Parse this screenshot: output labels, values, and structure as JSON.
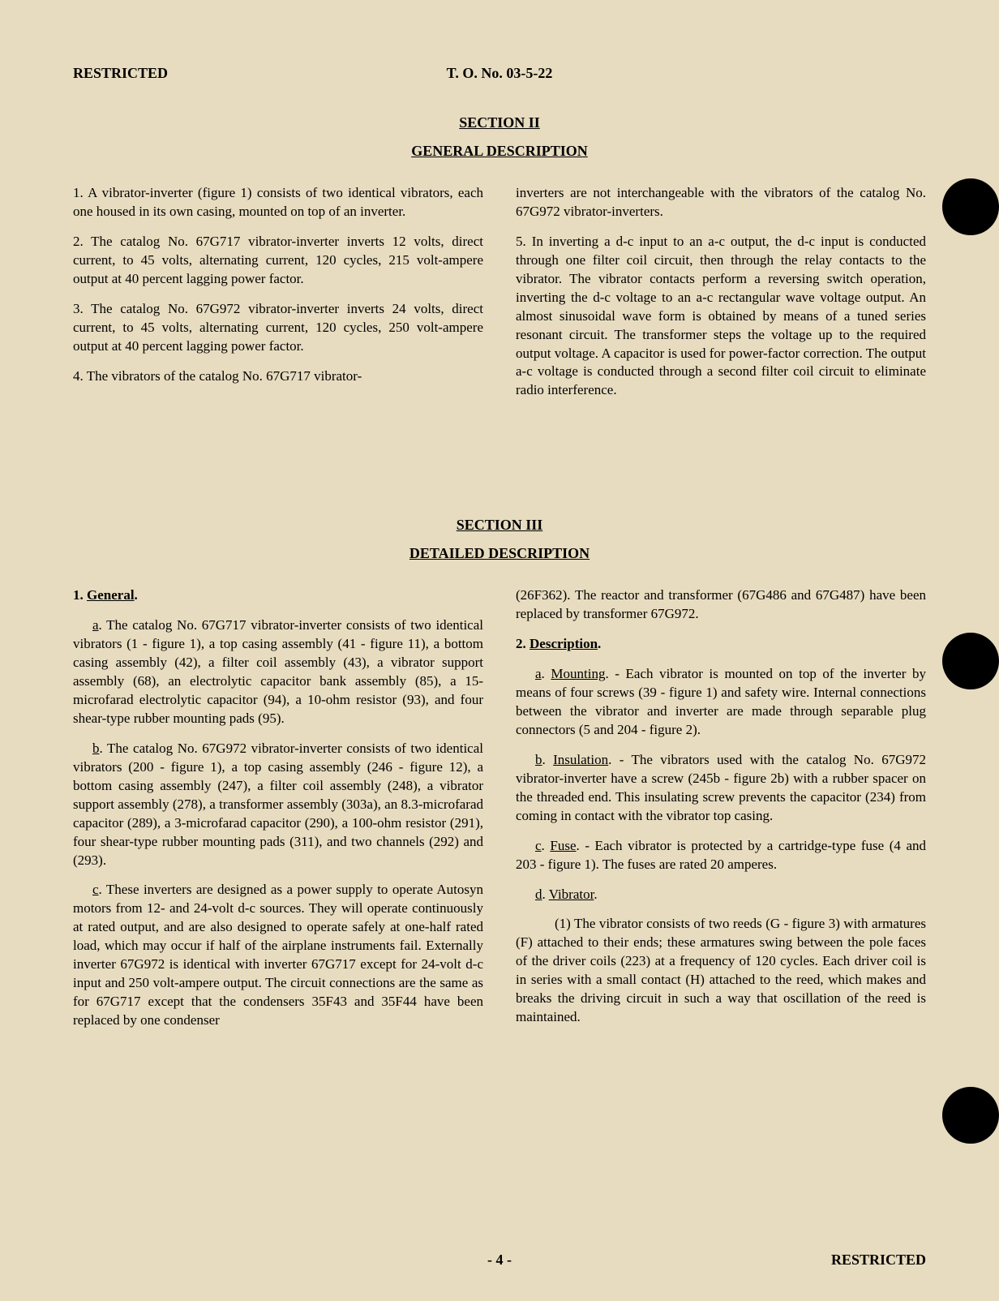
{
  "header": {
    "classification": "RESTRICTED",
    "doc_number": "T. O. No. 03-5-22"
  },
  "section2": {
    "title": "SECTION II",
    "subtitle": "GENERAL DESCRIPTION",
    "left": {
      "p1": "1. A vibrator-inverter (figure 1) consists of two identical vibrators, each one housed in its own casing, mounted on top of an inverter.",
      "p2": "2. The catalog No. 67G717 vibrator-inverter inverts 12 volts, direct current, to 45 volts, alternating current, 120 cycles, 215 volt-ampere output at 40 percent lagging power factor.",
      "p3": "3. The catalog No. 67G972 vibrator-inverter inverts 24 volts, direct current, to 45 volts, alternating current, 120 cycles, 250 volt-ampere output at 40 percent lagging power factor.",
      "p4": "4. The vibrators of the catalog No. 67G717 vibrator-"
    },
    "right": {
      "p1": "inverters are not interchangeable with the vibrators of the catalog No. 67G972 vibrator-inverters.",
      "p2": "5. In inverting a d-c input to an a-c output, the d-c input is conducted through one filter coil circuit, then through the relay contacts to the vibrator. The vibrator contacts perform a reversing switch operation, inverting the d-c voltage to an a-c rectangular wave voltage output. An almost sinusoidal wave form is obtained by means of a tuned series resonant circuit. The transformer steps the voltage up to the required output voltage. A capacitor is used for power-factor correction. The output a-c voltage is conducted through a second filter coil circuit to eliminate radio interference."
    }
  },
  "section3": {
    "title": "SECTION III",
    "subtitle": "DETAILED DESCRIPTION",
    "left": {
      "h1_num": "1. ",
      "h1_text": "General",
      "h1_period": ".",
      "a_label": "a",
      "a_text": ". The catalog No. 67G717 vibrator-inverter consists of two identical vibrators (1 - figure 1), a top casing assembly (41 - figure 11), a bottom casing assembly (42), a filter coil assembly (43), a vibrator support assembly (68), an electrolytic capacitor bank assembly (85), a 15-microfarad electrolytic capacitor (94), a 10-ohm resistor (93), and four shear-type rubber mounting pads (95).",
      "b_label": "b",
      "b_text": ". The catalog No. 67G972 vibrator-inverter consists of two identical vibrators (200 - figure 1), a top casing assembly (246 - figure 12), a bottom casing assembly (247), a filter coil assembly (248), a vibrator support assembly (278), a transformer assembly (303a), an 8.3-microfarad capacitor (289), a 3-microfarad capacitor (290), a 100-ohm resistor (291), four shear-type rubber mounting pads (311), and two channels (292) and (293).",
      "c_label": "c",
      "c_text": ". These inverters are designed as a power supply to operate Autosyn motors from 12- and 24-volt d-c sources. They will operate continuously at rated output, and are also designed to operate safely at one-half rated load, which may occur if half of the airplane instruments fail. Externally inverter 67G972 is identical with inverter 67G717 except for 24-volt d-c input and 250 volt-ampere output. The circuit connections are the same as for 67G717 except that the condensers 35F43 and 35F44 have been replaced by one condenser"
    },
    "right": {
      "p0": "(26F362). The reactor and transformer (67G486 and 67G487) have been replaced by transformer 67G972.",
      "h2_num": "2. ",
      "h2_text": "Description",
      "h2_period": ".",
      "a_label": "a",
      "a_text_u": "Mounting",
      "a_text": ". - Each vibrator is mounted on top of the inverter by means of four screws (39 - figure 1) and safety wire. Internal connections between the vibrator and inverter are made through separable plug connectors (5 and 204 - figure 2).",
      "b_label": "b",
      "b_text_u": "Insulation",
      "b_text": ". - The vibrators used with the catalog No. 67G972 vibrator-inverter have a screw (245b - figure 2b) with a rubber spacer on the threaded end. This insulating screw prevents the capacitor (234) from coming in contact with the vibrator top casing.",
      "c_label": "c",
      "c_text_u": "Fuse",
      "c_text": ". - Each vibrator is protected by a cartridge-type fuse (4 and 203 - figure 1). The fuses are rated 20 amperes.",
      "d_label": "d",
      "d_text_u": "Vibrator",
      "d_period": ".",
      "p1_text": "(1) The vibrator consists of two reeds (G - figure 3) with armatures (F) attached to their ends; these armatures swing between the pole faces of the driver coils (223) at a frequency of 120 cycles. Each driver coil is in series with a small contact (H) attached to the reed, which makes and breaks the driving circuit in such a way that oscillation of the reed is maintained."
    }
  },
  "footer": {
    "page": "- 4 -",
    "classification": "RESTRICTED"
  },
  "colors": {
    "bg": "#e8dcc0",
    "text": "#000000",
    "hole": "#000000"
  }
}
